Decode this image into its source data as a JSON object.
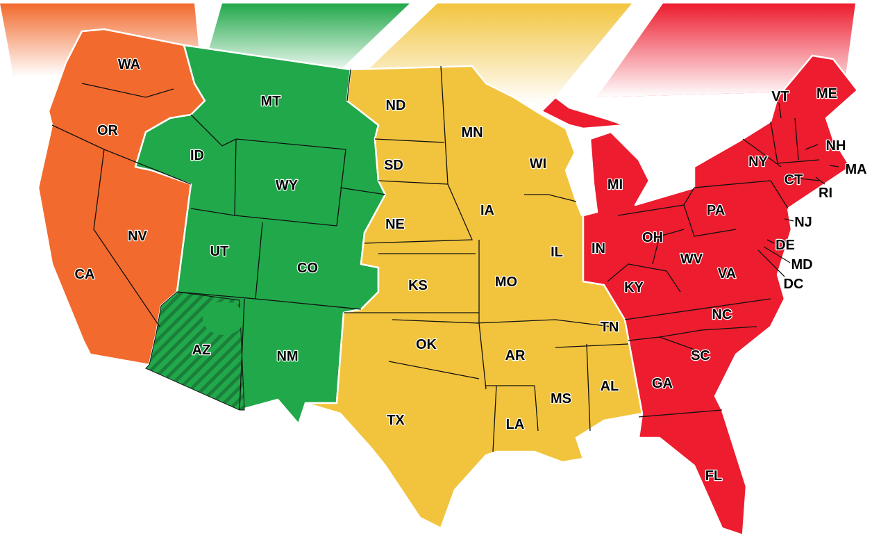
{
  "zones": [
    {
      "id": "pacific",
      "color": "#f26a2e"
    },
    {
      "id": "mountain",
      "color": "#21a84a"
    },
    {
      "id": "central",
      "color": "#f2c43d"
    },
    {
      "id": "eastern",
      "color": "#ed1c2e"
    }
  ],
  "no_dst_hatched_state": "AZ",
  "states": [
    {
      "abbr": "WA",
      "zone": "pacific"
    },
    {
      "abbr": "OR",
      "zone": "pacific"
    },
    {
      "abbr": "CA",
      "zone": "pacific"
    },
    {
      "abbr": "NV",
      "zone": "pacific"
    },
    {
      "abbr": "MT",
      "zone": "mountain"
    },
    {
      "abbr": "ID",
      "zone": "mountain"
    },
    {
      "abbr": "WY",
      "zone": "mountain"
    },
    {
      "abbr": "UT",
      "zone": "mountain"
    },
    {
      "abbr": "CO",
      "zone": "mountain"
    },
    {
      "abbr": "AZ",
      "zone": "mountain"
    },
    {
      "abbr": "NM",
      "zone": "mountain"
    },
    {
      "abbr": "ND",
      "zone": "central"
    },
    {
      "abbr": "SD",
      "zone": "central"
    },
    {
      "abbr": "NE",
      "zone": "central"
    },
    {
      "abbr": "KS",
      "zone": "central"
    },
    {
      "abbr": "OK",
      "zone": "central"
    },
    {
      "abbr": "TX",
      "zone": "central"
    },
    {
      "abbr": "MN",
      "zone": "central"
    },
    {
      "abbr": "IA",
      "zone": "central"
    },
    {
      "abbr": "MO",
      "zone": "central"
    },
    {
      "abbr": "AR",
      "zone": "central"
    },
    {
      "abbr": "LA",
      "zone": "central"
    },
    {
      "abbr": "WI",
      "zone": "central"
    },
    {
      "abbr": "IL",
      "zone": "central"
    },
    {
      "abbr": "MS",
      "zone": "central"
    },
    {
      "abbr": "AL",
      "zone": "central"
    },
    {
      "abbr": "TN",
      "zone": "central"
    },
    {
      "abbr": "MI",
      "zone": "eastern"
    },
    {
      "abbr": "IN",
      "zone": "eastern"
    },
    {
      "abbr": "OH",
      "zone": "eastern"
    },
    {
      "abbr": "KY",
      "zone": "eastern"
    },
    {
      "abbr": "WV",
      "zone": "eastern"
    },
    {
      "abbr": "VA",
      "zone": "eastern"
    },
    {
      "abbr": "NC",
      "zone": "eastern"
    },
    {
      "abbr": "SC",
      "zone": "eastern"
    },
    {
      "abbr": "GA",
      "zone": "eastern"
    },
    {
      "abbr": "FL",
      "zone": "eastern"
    },
    {
      "abbr": "PA",
      "zone": "eastern"
    },
    {
      "abbr": "NY",
      "zone": "eastern"
    },
    {
      "abbr": "VT",
      "zone": "eastern"
    },
    {
      "abbr": "NH",
      "zone": "eastern"
    },
    {
      "abbr": "ME",
      "zone": "eastern"
    },
    {
      "abbr": "MA",
      "zone": "eastern"
    },
    {
      "abbr": "CT",
      "zone": "eastern"
    },
    {
      "abbr": "RI",
      "zone": "eastern"
    },
    {
      "abbr": "NJ",
      "zone": "eastern"
    },
    {
      "abbr": "DE",
      "zone": "eastern"
    },
    {
      "abbr": "MD",
      "zone": "eastern"
    },
    {
      "abbr": "DC",
      "zone": "eastern"
    }
  ]
}
